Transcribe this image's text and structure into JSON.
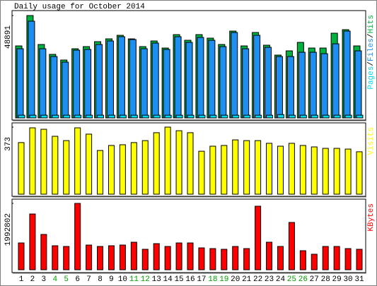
{
  "chart_data": [
    {
      "type": "bar",
      "title": "Daily usage for October 2014",
      "ylim": [
        0,
        48891
      ],
      "yticks": [
        48891
      ],
      "series": [
        {
          "name": "Hits",
          "color": "#00b040",
          "values": [
            34390,
            48891,
            35070,
            30350,
            27650,
            33040,
            34060,
            36420,
            37760,
            39450,
            37760,
            34060,
            36750,
            33380,
            39790,
            37090,
            39790,
            38100,
            35070,
            41470,
            34390,
            40800,
            34730,
            30010,
            32030,
            36080,
            33380,
            33380,
            40460,
            42150,
            34390
          ]
        },
        {
          "name": "Files",
          "color": "#1e8ef0",
          "values": [
            33040,
            46190,
            33040,
            29330,
            26640,
            32370,
            32710,
            35070,
            36750,
            38780,
            37430,
            33040,
            35740,
            32710,
            38780,
            36080,
            38440,
            37090,
            34060,
            40800,
            33040,
            39450,
            33720,
            29330,
            29330,
            31360,
            31360,
            30680,
            35400,
            41470,
            32030
          ]
        },
        {
          "name": "Pages",
          "color": "#00d8f0",
          "values": [
            1300,
            1300,
            1300,
            1300,
            1300,
            1300,
            1300,
            1300,
            1300,
            1300,
            1300,
            1300,
            1300,
            1300,
            1300,
            1300,
            1300,
            1300,
            1300,
            1300,
            1300,
            1300,
            1300,
            1600,
            1300,
            1300,
            1300,
            1300,
            1300,
            1300,
            1300
          ]
        }
      ]
    },
    {
      "type": "bar",
      "ylim": [
        0,
        373
      ],
      "yticks": [
        373
      ],
      "series": [
        {
          "name": "Visits",
          "color": "#ffff00",
          "values": [
            287,
            369,
            361,
            322,
            298,
            369,
            334,
            243,
            271,
            275,
            287,
            298,
            342,
            373,
            353,
            342,
            239,
            267,
            271,
            302,
            298,
            298,
            283,
            267,
            283,
            271,
            263,
            255,
            255,
            251,
            236
          ]
        }
      ]
    },
    {
      "type": "bar",
      "ylim": [
        0,
        1992802
      ],
      "yticks": [
        1992802
      ],
      "categories": [
        "1",
        "2",
        "3",
        "4",
        "5",
        "6",
        "7",
        "8",
        "9",
        "10",
        "11",
        "12",
        "13",
        "14",
        "15",
        "16",
        "17",
        "18",
        "19",
        "20",
        "21",
        "22",
        "23",
        "24",
        "25",
        "26",
        "27",
        "28",
        "29",
        "30",
        "31"
      ],
      "highlight_categories": [
        "4",
        "5",
        "11",
        "12",
        "18",
        "19",
        "25",
        "26"
      ],
      "highlight_color": "#00a000",
      "series": [
        {
          "name": "KBytes",
          "color": "#ff0000",
          "values": [
            805600,
            1674800,
            1060000,
            720800,
            699600,
            1992802,
            742000,
            699600,
            720800,
            742000,
            826800,
            614800,
            784400,
            699600,
            805600,
            805600,
            657200,
            636000,
            614800,
            699600,
            636000,
            1908000,
            826800,
            699600,
            1420400,
            572400,
            466400,
            699600,
            699600,
            636000,
            614800
          ]
        }
      ]
    }
  ]
}
